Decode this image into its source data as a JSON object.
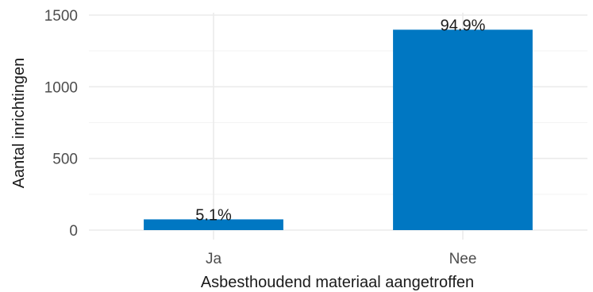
{
  "chart_data": {
    "type": "bar",
    "categories": [
      "Ja",
      "Nee"
    ],
    "values": [
      75,
      1398
    ],
    "data_labels": [
      "5.1%",
      "94.9%"
    ],
    "title": "",
    "xlabel": "Asbesthoudend materiaal aangetroffen",
    "ylabel": "Aantal inrichtingen",
    "ylim": [
      0,
      1500
    ],
    "yticks": [
      0,
      500,
      1000,
      1500
    ],
    "grid": true,
    "legend": "none",
    "colors": {
      "bar": "#0077c2"
    }
  }
}
